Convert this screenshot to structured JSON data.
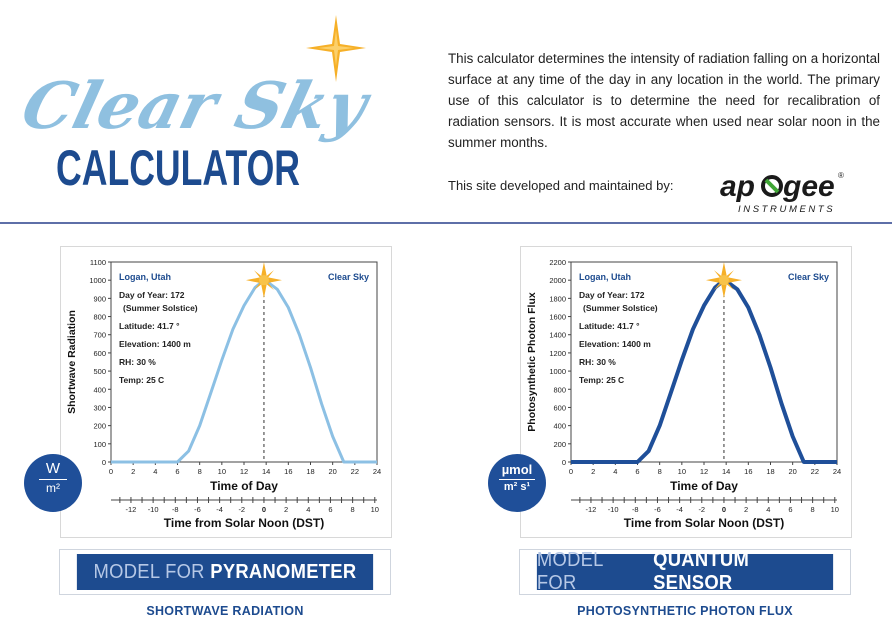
{
  "logo": {
    "script_text": "Clear Sky",
    "word": "CALCULATOR",
    "script_color": "#8fc0e0",
    "word_color": "#1d4b8f",
    "star_color": "#f6b028"
  },
  "description": "This calculator determines the intensity of radiation falling on a horizontal surface at any time of the day in any location in the world. The primary use of this calculator is to determine the need for recalibration of radiation sensors. It is most accurate when used near solar noon in the summer months.",
  "maintained_text": "This site developed and maintained by:",
  "apogee": {
    "name_left": "ap",
    "name_right": "gee",
    "registered": "®",
    "subtitle": "INSTRUMENTS"
  },
  "colors": {
    "accent": "#1d4b8f",
    "light_curve": "#8cc0e4",
    "dark_curve": "#1f4f99",
    "sun": "#f6b028"
  },
  "panels": [
    {
      "id": "shortwave",
      "ylabel": "Shortwave Radiation",
      "location": "Logan, Utah",
      "sky": "Clear Sky",
      "info": [
        "Day of Year: 172",
        "(Summer Solstice)",
        "Latitude: 41.7 °",
        "Elevation: 1400 m",
        "RH: 30 %",
        "Temp: 25 C"
      ],
      "xlabel": "Time of Day",
      "x2label": "Time from Solar Noon (DST)",
      "unit_top": "W",
      "unit_bottom": "m²",
      "button_light": "MODEL FOR",
      "button_bold": "PYRANOMETER",
      "caption": "SHORTWAVE RADIATION"
    },
    {
      "id": "ppf",
      "ylabel": "Photosynthetic Photon Flux",
      "location": "Logan, Utah",
      "sky": "Clear Sky",
      "info": [
        "Day of Year: 172",
        "(Summer Solstice)",
        "Latitude: 41.7 °",
        "Elevation: 1400 m",
        "RH: 30 %",
        "Temp: 25 C"
      ],
      "xlabel": "Time of Day",
      "x2label": "Time from Solar Noon (DST)",
      "unit_top": "µmol",
      "unit_bottom": "m² s¹",
      "button_light": "MODEL FOR",
      "button_bold": "QUANTUM SENSOR",
      "caption": "PHOTOSYNTHETIC PHOTON FLUX"
    }
  ],
  "chart_data": [
    {
      "type": "line",
      "title": "",
      "xlabel": "Time of Day",
      "ylabel": "Shortwave Radiation",
      "xlim": [
        0,
        24
      ],
      "ylim": [
        0,
        1100
      ],
      "x_ticks": [
        0,
        2,
        4,
        6,
        8,
        10,
        12,
        14,
        16,
        18,
        20,
        22,
        24
      ],
      "y_ticks": [
        0,
        100,
        200,
        300,
        400,
        500,
        600,
        700,
        800,
        900,
        1000,
        1100
      ],
      "solar_noon_ticks": [
        -12,
        -10,
        -8,
        -6,
        -4,
        -2,
        0,
        2,
        4,
        6,
        8,
        10
      ],
      "solar_noon": 13.8,
      "series": [
        {
          "name": "Shortwave Radiation",
          "x": [
            0,
            6,
            7,
            8,
            9,
            10,
            11,
            12,
            13,
            13.8,
            14,
            15,
            16,
            17,
            18,
            19,
            20,
            21,
            24
          ],
          "values": [
            0,
            0,
            60,
            200,
            380,
            560,
            730,
            860,
            960,
            1000,
            995,
            950,
            850,
            700,
            520,
            320,
            140,
            0,
            0
          ]
        }
      ]
    },
    {
      "type": "line",
      "title": "",
      "xlabel": "Time of Day",
      "ylabel": "Photosynthetic Photon Flux",
      "xlim": [
        0,
        24
      ],
      "ylim": [
        0,
        2200
      ],
      "x_ticks": [
        0,
        2,
        4,
        6,
        8,
        10,
        12,
        14,
        16,
        18,
        20,
        22,
        24
      ],
      "y_ticks": [
        0,
        200,
        400,
        600,
        800,
        1000,
        1200,
        1400,
        1600,
        1800,
        2000,
        2200
      ],
      "solar_noon_ticks": [
        -12,
        -10,
        -8,
        -6,
        -4,
        -2,
        0,
        2,
        4,
        6,
        8,
        10
      ],
      "solar_noon": 13.8,
      "series": [
        {
          "name": "Photosynthetic Photon Flux",
          "x": [
            0,
            6,
            7,
            8,
            9,
            10,
            11,
            12,
            13,
            13.8,
            14,
            15,
            16,
            17,
            18,
            19,
            20,
            21,
            24
          ],
          "values": [
            0,
            0,
            120,
            400,
            760,
            1120,
            1460,
            1720,
            1920,
            2000,
            1990,
            1900,
            1700,
            1400,
            1040,
            640,
            280,
            0,
            0
          ]
        }
      ]
    }
  ]
}
